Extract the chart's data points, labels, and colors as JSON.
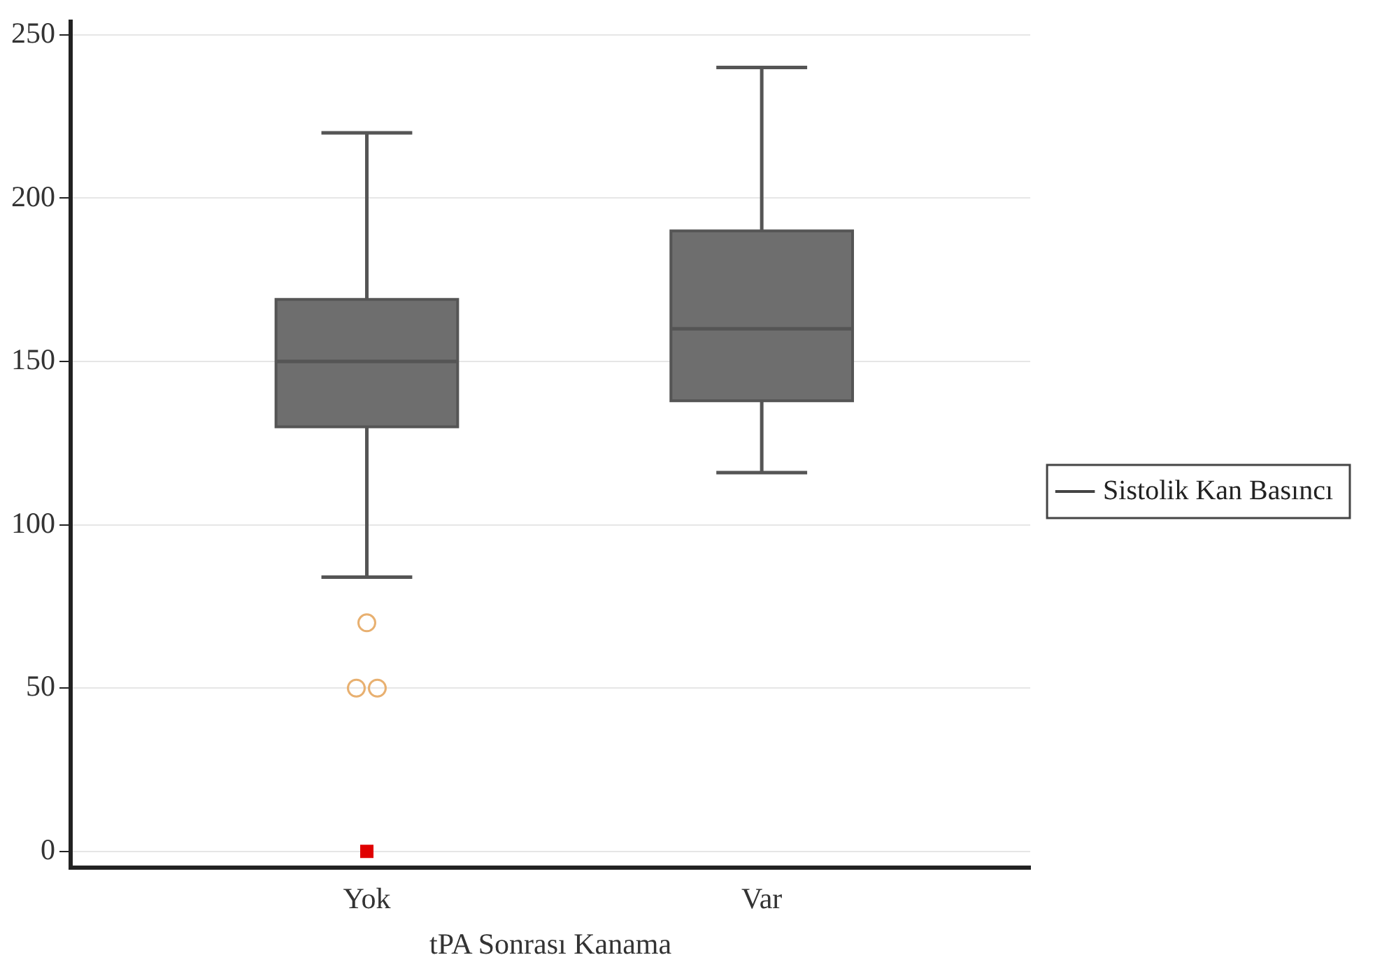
{
  "chart_data": {
    "type": "box",
    "xlabel": "tPA Sonrası Kanama",
    "categories": [
      "Yok",
      "Var"
    ],
    "ylim": [
      -5,
      254
    ],
    "yticks": [
      0,
      50,
      100,
      150,
      200,
      250
    ],
    "grid": "y",
    "legend": "right",
    "series": [
      {
        "name": "Sistolik Kan Basıncı",
        "color": "#6e6e6e",
        "boxes": [
          {
            "low": 84,
            "q1": 130,
            "median": 150,
            "q3": 169,
            "high": 220,
            "outliers": [
              70,
              50,
              50
            ]
          },
          {
            "low": 116,
            "q1": 138,
            "median": 160,
            "q3": 190,
            "high": 240
          }
        ]
      },
      {
        "type": "scatter",
        "x": [
          "Yok"
        ],
        "values": [
          0
        ],
        "color": "#e00000",
        "marker": "square"
      }
    ]
  }
}
